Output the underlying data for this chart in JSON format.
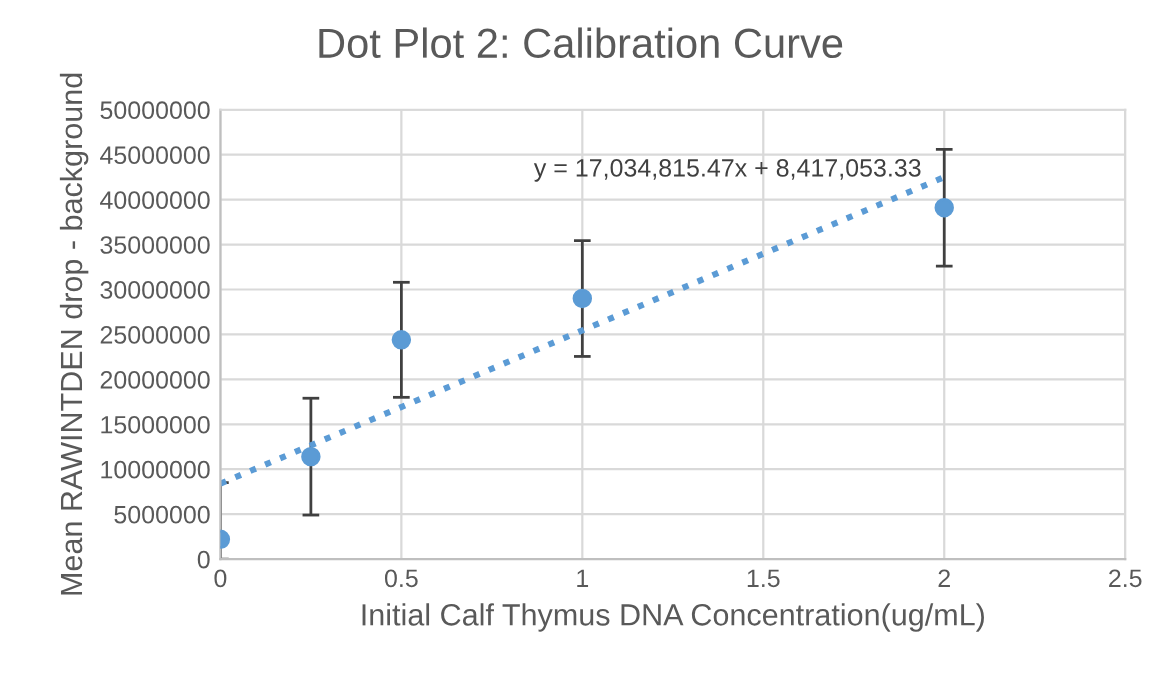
{
  "chart_data": {
    "type": "scatter",
    "title": "Dot Plot 2: Calibration Curve",
    "xlabel": "Initial Calf Thymus DNA Concentration(ug/mL)",
    "ylabel": "Mean RAWINTDEN drop - background",
    "series": [
      {
        "color": "#5b9bd5",
        "marker": "circle",
        "x": [
          0,
          0.25,
          0.5,
          1,
          2
        ],
        "values": [
          2200000,
          11400000,
          24400000,
          29000000,
          39100000
        ],
        "errors": [
          [
            0,
            8500000
          ],
          6500000,
          6400000,
          6450000,
          6500000
        ]
      },
      {
        "type": "line",
        "color": "#5b9bd5",
        "line_style": "dotted",
        "x": [
          0,
          2
        ],
        "values": [
          8400000,
          42500000
        ]
      }
    ],
    "annotations": [
      "y = 17,034,815.47x + 8,417,053.33"
    ],
    "xlim": [
      0,
      2.5
    ],
    "xticks": [
      0,
      0.5,
      1,
      1.5,
      2,
      2.5
    ],
    "ylim": [
      0,
      50000000
    ],
    "yticks": [
      0,
      5000000,
      10000000,
      15000000,
      20000000,
      25000000,
      30000000,
      35000000,
      40000000,
      45000000,
      50000000
    ],
    "grid": true
  }
}
